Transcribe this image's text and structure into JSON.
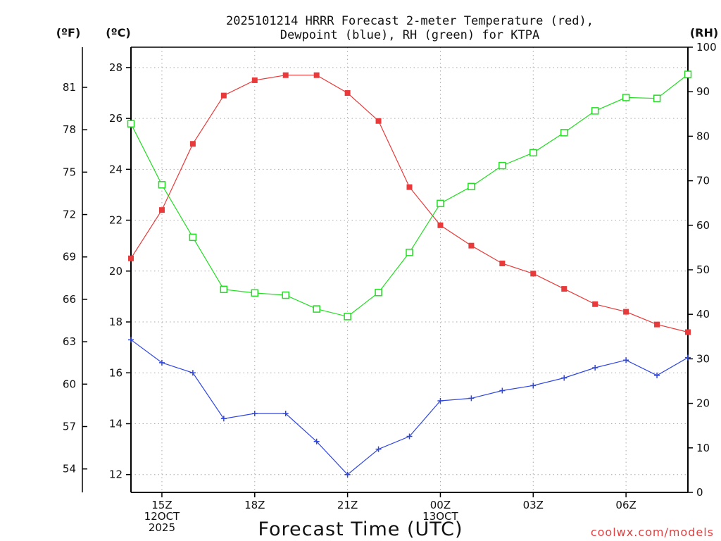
{
  "chart_data": {
    "type": "line",
    "title_line1": "2025101214 HRRR Forecast 2-meter Temperature (red),",
    "title_line2": "Dewpoint (blue), RH (green) for KTPA",
    "xlabel": "Forecast Time (UTC)",
    "credit": "coolwx.com/models",
    "units": {
      "fahrenheit": "(ºF)",
      "celsius": "(ºC)",
      "rh": "(RH)"
    },
    "x_hours": [
      14,
      15,
      16,
      17,
      18,
      19,
      20,
      21,
      22,
      23,
      24,
      25,
      26,
      27,
      28,
      29,
      30,
      31,
      32
    ],
    "xlim": [
      14,
      32
    ],
    "x_ticks": [
      {
        "hour": 15,
        "lines": [
          "15Z",
          "12OCT",
          "2025"
        ]
      },
      {
        "hour": 18,
        "lines": [
          "18Z"
        ]
      },
      {
        "hour": 21,
        "lines": [
          "21Z"
        ]
      },
      {
        "hour": 24,
        "lines": [
          "00Z",
          "13OCT"
        ]
      },
      {
        "hour": 27,
        "lines": [
          "03Z"
        ]
      },
      {
        "hour": 30,
        "lines": [
          "06Z"
        ]
      }
    ],
    "celsius_axis": {
      "min": 11.3,
      "max": 28.8,
      "ticks": [
        12,
        14,
        16,
        18,
        20,
        22,
        24,
        26,
        28
      ]
    },
    "fahrenheit_ticks": [
      54,
      57,
      60,
      63,
      66,
      69,
      72,
      75,
      78,
      81
    ],
    "rh_axis": {
      "min": 0,
      "max": 100,
      "ticks": [
        0,
        10,
        20,
        30,
        40,
        50,
        60,
        70,
        80,
        90,
        100
      ]
    },
    "series": [
      {
        "name": "2-meter Temperature",
        "color": "#e83a3a",
        "marker": "filled-square",
        "axis": "celsius",
        "values": [
          20.5,
          22.4,
          25.0,
          26.9,
          27.5,
          27.7,
          27.7,
          27.0,
          25.9,
          23.3,
          21.8,
          21.0,
          20.3,
          19.9,
          19.3,
          18.7,
          18.4,
          17.9,
          17.6
        ]
      },
      {
        "name": "Dewpoint",
        "color": "#2f46e0",
        "marker": "plus",
        "axis": "celsius",
        "values": [
          17.3,
          16.4,
          16.0,
          14.2,
          14.4,
          14.4,
          13.3,
          12.0,
          13.0,
          13.5,
          14.9,
          15.0,
          15.3,
          15.5,
          15.8,
          16.2,
          16.5,
          15.9,
          16.6
        ]
      },
      {
        "name": "RH",
        "color": "#22dd22",
        "marker": "open-square",
        "axis": "rh",
        "values": [
          82.8,
          69.1,
          57.3,
          45.6,
          44.8,
          44.3,
          41.2,
          39.5,
          44.9,
          53.9,
          64.9,
          68.7,
          73.4,
          76.3,
          80.8,
          85.7,
          88.7,
          88.5,
          93.9
        ]
      }
    ]
  }
}
